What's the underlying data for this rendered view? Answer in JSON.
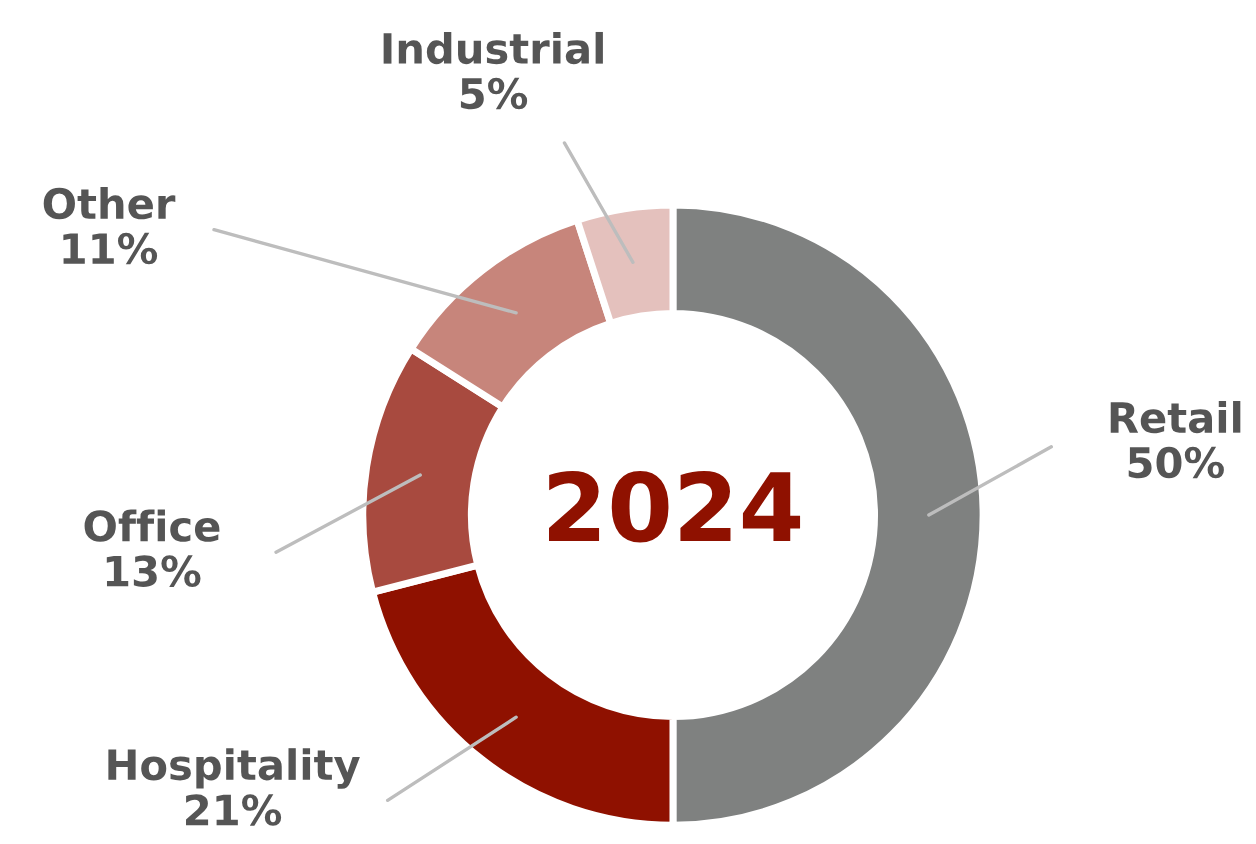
{
  "chart_data": {
    "type": "donut",
    "title": "2024",
    "categories": [
      "Retail",
      "Hospitality",
      "Office",
      "Other",
      "Industrial"
    ],
    "values": [
      50,
      21,
      13,
      11,
      5
    ],
    "colors": [
      "#7f8180",
      "#8f1100",
      "#a84a3f",
      "#c7857b",
      "#e4c1bd"
    ],
    "value_labels": [
      "50%",
      "21%",
      "13%",
      "11%",
      "5%"
    ]
  }
}
